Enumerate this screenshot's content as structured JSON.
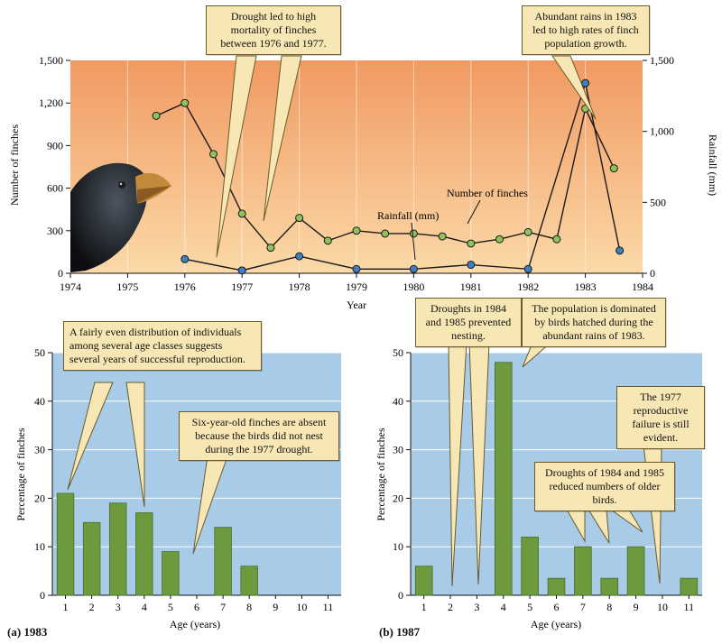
{
  "colors": {
    "rain_line": "#1a1a1a",
    "finch_fill": "#8fc25a",
    "rain_fill": "#3b7fc4",
    "bar": "#6d9a3c",
    "panel_bg": "#a8cbe8",
    "ann_bg": "#f7e7b4"
  },
  "chart_data": [
    {
      "type": "line",
      "xlabel": "Year",
      "ylabel": "Number of finches",
      "y2label": "Rainfall (mm)",
      "xlim": [
        1974,
        1984
      ],
      "ylim": [
        0,
        1500
      ],
      "y2lim": [
        0,
        1500
      ],
      "x_ticks": [
        "1974",
        "1975",
        "1976",
        "1977",
        "1978",
        "1979",
        "1980",
        "1981",
        "1982",
        "1983",
        "1984"
      ],
      "y_ticks": [
        "0",
        "300",
        "600",
        "900",
        "1,200",
        "1,500"
      ],
      "y2_ticks": [
        "0",
        "500",
        "1,000",
        "1,500"
      ],
      "series": [
        {
          "name": "Number of finches",
          "x": [
            1975.5,
            1976,
            1976.5,
            1977,
            1977.5,
            1978,
            1978.5,
            1979,
            1979.5,
            1980,
            1980.5,
            1981,
            1981.5,
            1982,
            1982.5,
            1983,
            1983.5
          ],
          "y": [
            1110,
            1200,
            840,
            420,
            180,
            390,
            230,
            300,
            280,
            280,
            260,
            210,
            240,
            290,
            240,
            1160,
            740
          ]
        },
        {
          "name": "Rainfall (mm)",
          "x": [
            1976,
            1977,
            1978,
            1979,
            1980,
            1981,
            1982,
            1983,
            1983.6
          ],
          "y": [
            100,
            20,
            120,
            30,
            30,
            60,
            30,
            1340,
            160
          ]
        }
      ],
      "labels": {
        "finches": "Number of finches",
        "rain": "Rainfall (mm)"
      },
      "annotations": [
        "Drought led to high mortality of finches between 1976 and 1977.",
        "Abundant rains in 1983 led to high rates of finch population growth."
      ]
    },
    {
      "type": "bar",
      "title": "(a) 1983",
      "xlabel": "Age (years)",
      "ylabel": "Percentage of finches",
      "ylim": [
        0,
        50
      ],
      "y_ticks": [
        "0",
        "10",
        "20",
        "30",
        "40",
        "50"
      ],
      "categories": [
        "1",
        "2",
        "3",
        "4",
        "5",
        "6",
        "7",
        "8",
        "9",
        "10",
        "11"
      ],
      "values": [
        21,
        15,
        19,
        17,
        9,
        0,
        14,
        6,
        0,
        0,
        0
      ],
      "annotations": [
        "A fairly even distribution of individuals among several age classes suggests several years of successful reproduction.",
        "Six-year-old finches are absent because the birds did not nest during the 1977 drought."
      ]
    },
    {
      "type": "bar",
      "title": "(b) 1987",
      "xlabel": "Age (years)",
      "ylabel": "Percentage of finches",
      "ylim": [
        0,
        50
      ],
      "y_ticks": [
        "0",
        "10",
        "20",
        "30",
        "40",
        "50"
      ],
      "categories": [
        "1",
        "2",
        "3",
        "4",
        "5",
        "6",
        "7",
        "8",
        "9",
        "10",
        "11"
      ],
      "values": [
        6,
        0,
        0,
        48,
        12,
        3.5,
        10,
        3.5,
        10,
        0,
        3.5
      ],
      "annotations": [
        "Droughts in 1984 and 1985 prevented nesting.",
        "The population is dominated by birds hatched during the abundant rains of 1983.",
        "The 1977 reproductive failure is still evident.",
        "Droughts of 1984 and 1985 reduced numbers of older birds."
      ]
    }
  ]
}
